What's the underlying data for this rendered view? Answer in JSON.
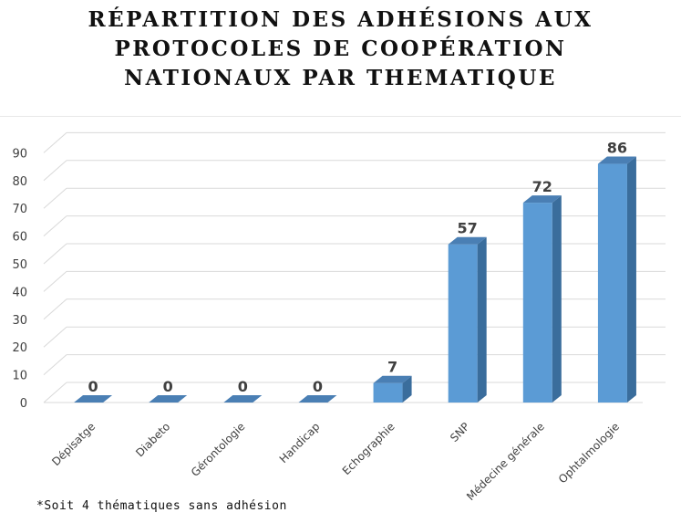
{
  "title_lines": [
    "RÉPARTITION DES ADHÉSIONS AUX",
    "PROTOCOLES DE COOPÉRATION",
    "NATIONAUX PAR THEMATIQUE"
  ],
  "footnote": "*Soit 4 thématiques sans adhésion",
  "colors": {
    "bar_front": "#5b9bd5",
    "bar_side": "#3a6d9c",
    "bar_top": "#4a7fb4",
    "grid": "#d9d9d9"
  },
  "chart_data": {
    "type": "bar",
    "title": "RÉPARTITION DES ADHÉSIONS AUX PROTOCOLES DE COOPÉRATION NATIONAUX PAR THEMATIQUE",
    "categories": [
      "Dépisatge",
      "Diabeto",
      "Gérontologie",
      "Handicap",
      "Echographie",
      "SNP",
      "Médecine générale",
      "Ophtalmologie"
    ],
    "values": [
      0,
      0,
      0,
      0,
      7,
      57,
      72,
      86
    ],
    "ylim": [
      0,
      90
    ],
    "yticks": [
      0,
      10,
      20,
      30,
      40,
      50,
      60,
      70,
      80,
      90
    ],
    "xlabel": "",
    "ylabel": "",
    "grid": true,
    "data_labels": true,
    "style": "3d-column"
  }
}
